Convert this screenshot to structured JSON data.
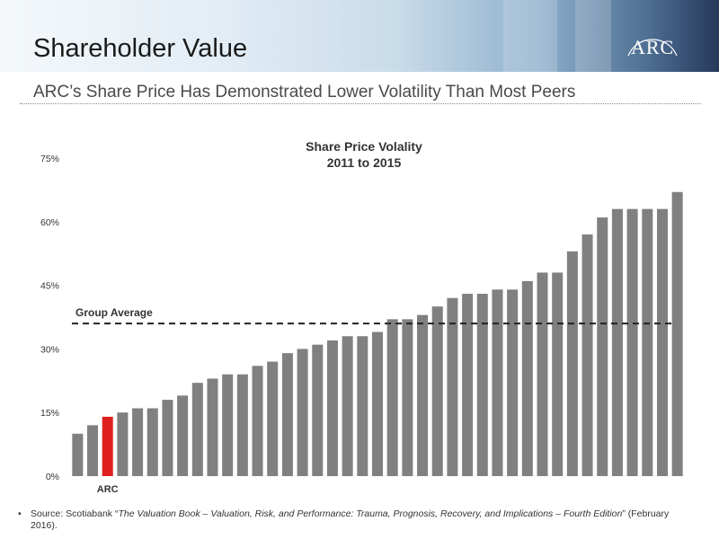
{
  "header": {
    "title": "Shareholder Value",
    "logo_text": "ARC",
    "subtitle": "ARC’s Share Price Has Demonstrated Lower Volatility Than Most Peers"
  },
  "colors": {
    "bar": "#808080",
    "highlight": "#e02020",
    "average_line": "#222222"
  },
  "chart_data": {
    "type": "bar",
    "title_line1": "Share Price Volality",
    "title_line2": "2011 to 2015",
    "ylim": [
      0,
      75
    ],
    "yticks": [
      0,
      15,
      30,
      45,
      60,
      75
    ],
    "ytick_labels": [
      "0%",
      "15%",
      "30%",
      "45%",
      "60%",
      "75%"
    ],
    "values": [
      10,
      12,
      14,
      15,
      16,
      16,
      18,
      19,
      22,
      23,
      24,
      24,
      26,
      27,
      29,
      30,
      31,
      32,
      33,
      33,
      34,
      37,
      37,
      38,
      40,
      42,
      43,
      43,
      44,
      44,
      46,
      48,
      48,
      53,
      57,
      61,
      63,
      63,
      63,
      63,
      67
    ],
    "highlight_index": 2,
    "highlight_label": "ARC",
    "group_average": 36,
    "group_average_label": "Group Average",
    "grid": false
  },
  "footnote": {
    "bullet": "•",
    "prefix": "Source: Scotiabank “",
    "italic": "The Valuation Book – Valuation, Risk, and Performance: Trauma, Prognosis, Recovery, and Implications – Fourth Edition",
    "suffix": "” (February 2016)."
  }
}
